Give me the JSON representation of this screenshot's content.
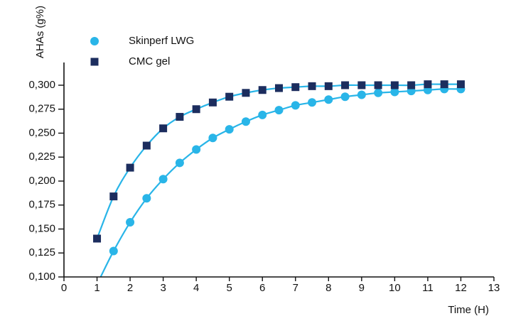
{
  "chart_data": {
    "type": "scatter",
    "title": "",
    "xlabel": "Time (H)",
    "ylabel": "AHAs (g%)",
    "xlim": [
      0,
      13
    ],
    "ylim": [
      0.1,
      0.3
    ],
    "x_ticks": [
      "0",
      "1",
      "2",
      "3",
      "4",
      "5",
      "6",
      "7",
      "8",
      "9",
      "10",
      "11",
      "12",
      "13"
    ],
    "y_ticks": [
      "0,100",
      "0,125",
      "0,150",
      "0,175",
      "0,200",
      "0,225",
      "0,250",
      "0,275",
      "0,300"
    ],
    "grid": false,
    "legend_position": "top-left",
    "series": [
      {
        "name": "Skinperf LWG",
        "marker": "circle",
        "color": "#29b5e8",
        "fit_line": true,
        "x": [
          1.5,
          2,
          2.5,
          3,
          3.5,
          4,
          4.5,
          5,
          5.5,
          6,
          6.5,
          7,
          7.5,
          8,
          8.5,
          9,
          9.5,
          10,
          10.5,
          11,
          11.5,
          12
        ],
        "y": [
          0.127,
          0.157,
          0.182,
          0.202,
          0.219,
          0.233,
          0.245,
          0.254,
          0.262,
          0.269,
          0.274,
          0.279,
          0.282,
          0.285,
          0.288,
          0.29,
          0.292,
          0.293,
          0.294,
          0.295,
          0.296,
          0.296
        ]
      },
      {
        "name": "CMC gel",
        "marker": "square",
        "color": "#1c2d5e",
        "fit_line": true,
        "x": [
          1,
          1.5,
          2,
          2.5,
          3,
          3.5,
          4,
          4.5,
          5,
          5.5,
          6,
          6.5,
          7,
          7.5,
          8,
          8.5,
          9,
          9.5,
          10,
          10.5,
          11,
          11.5,
          12
        ],
        "y": [
          0.14,
          0.184,
          0.214,
          0.237,
          0.255,
          0.267,
          0.275,
          0.282,
          0.288,
          0.292,
          0.295,
          0.297,
          0.298,
          0.299,
          0.299,
          0.3,
          0.3,
          0.3,
          0.3,
          0.3,
          0.301,
          0.301,
          0.301
        ]
      }
    ]
  }
}
